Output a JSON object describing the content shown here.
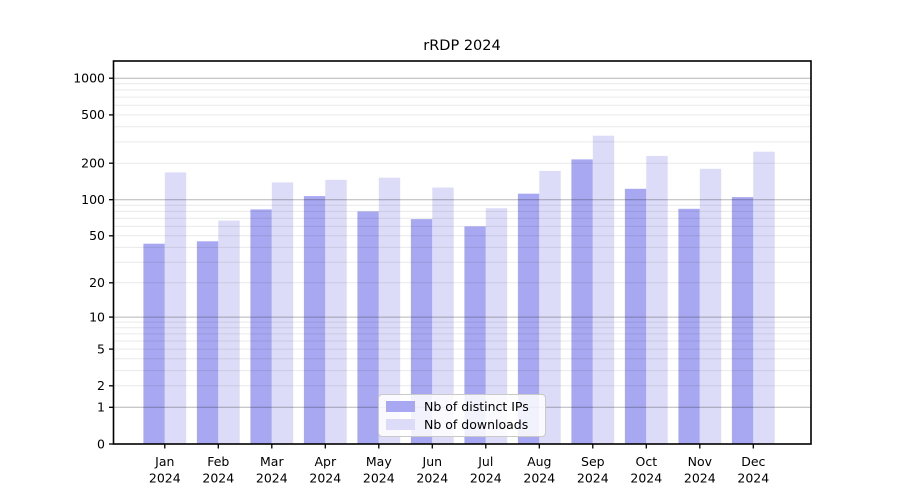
{
  "chart_data": {
    "type": "bar",
    "title": "rRDP 2024",
    "categories": [
      "Jan",
      "Feb",
      "Mar",
      "Apr",
      "May",
      "Jun",
      "Jul",
      "Aug",
      "Sep",
      "Oct",
      "Nov",
      "Dec"
    ],
    "x_year_label": "2024",
    "series": [
      {
        "name": "Nb of distinct IPs",
        "color": "#a8a8f2",
        "values": [
          43,
          45,
          83,
          107,
          80,
          69,
          60,
          112,
          215,
          123,
          84,
          105
        ]
      },
      {
        "name": "Nb of downloads",
        "color": "#dcdcf8",
        "values": [
          168,
          67,
          139,
          146,
          152,
          126,
          85,
          173,
          337,
          230,
          180,
          249
        ]
      }
    ],
    "y_axis": {
      "scale": "log10(1+x)",
      "tick_labels": [
        "1000",
        "500",
        "200",
        "100",
        "50",
        "20",
        "10",
        "5",
        "2",
        "1",
        "0"
      ],
      "tick_values": [
        1000,
        500,
        200,
        100,
        50,
        20,
        10,
        5,
        2,
        1,
        0
      ],
      "major_gridline_values": [
        1,
        10,
        100,
        1000
      ],
      "ylim": [
        0,
        1390
      ]
    },
    "legend": {
      "position": "bottom-center",
      "entries": [
        "Nb of distinct IPs",
        "Nb of downloads"
      ]
    },
    "grid": {
      "enabled": true,
      "major_color": "#b5b5b5",
      "minor_color": "#e9e9e9"
    },
    "colors": {
      "spine": "#000000",
      "text": "#000000",
      "background": "#ffffff"
    }
  }
}
